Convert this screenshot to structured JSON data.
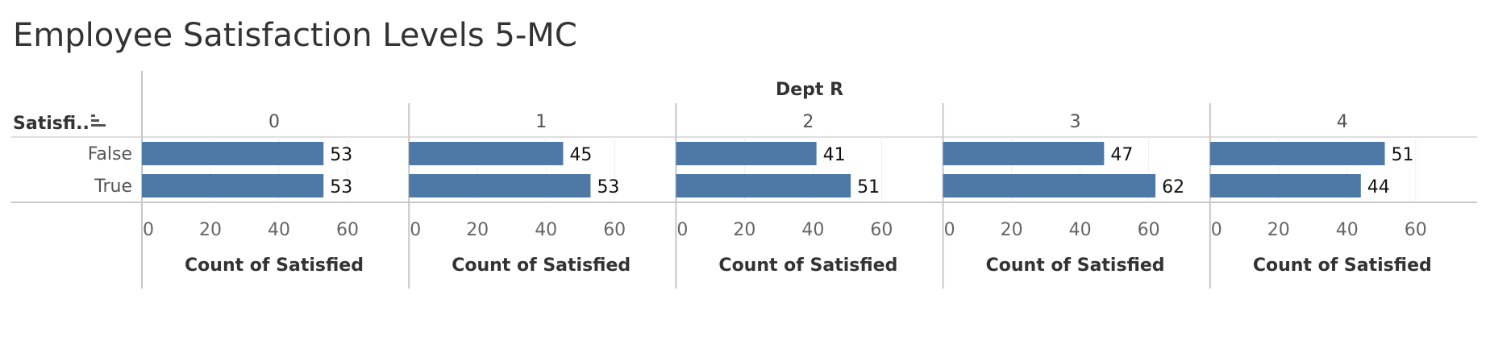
{
  "chart_data": {
    "type": "bar",
    "orientation": "horizontal",
    "title": "Employee Satisfaction Levels 5-MC",
    "column_header": "Dept R",
    "row_header": "Satisfi..",
    "sort_icon": "sort-descending-icon",
    "panels": [
      "0",
      "1",
      "2",
      "3",
      "4"
    ],
    "categories": [
      "False",
      "True"
    ],
    "values": [
      [
        53,
        53
      ],
      [
        45,
        53
      ],
      [
        41,
        51
      ],
      [
        47,
        62
      ],
      [
        51,
        44
      ]
    ],
    "xlabel": "Count of Satisfied",
    "xlim": [
      0,
      72
    ],
    "x_ticks": [
      "0",
      "20",
      "40",
      "60"
    ],
    "bar_color": "#4e79a7",
    "gridlines": true
  }
}
